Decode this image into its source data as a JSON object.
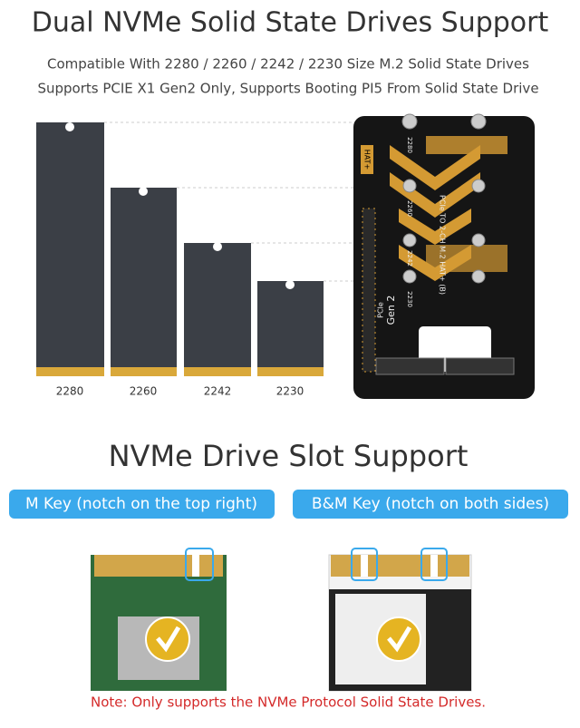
{
  "header": {
    "title": "Dual NVMe Solid State Drives Support",
    "lines": [
      "Compatible With 2280 / 2260 / 2242 / 2230 Size M.2 Solid State Drives",
      "Supports PCIE X1 Gen2 Only, Supports Booting PI5 From Solid State Drive"
    ]
  },
  "drives": [
    {
      "label": "2280"
    },
    {
      "label": "2260"
    },
    {
      "label": "2242"
    },
    {
      "label": "2230"
    }
  ],
  "board": {
    "hat": "HAT+",
    "name": "PCIe TO 2-CH M.2 HAT+ (B)",
    "gen_top": "PCIe",
    "gen": "Gen 2",
    "sizes": [
      "2280",
      "2260",
      "2242",
      "2230"
    ]
  },
  "slots": {
    "title": "NVMe Drive Slot Support",
    "m_key": "M Key (notch on the top right)",
    "bm_key": "B&M Key (notch on both sides)"
  },
  "note": "Note: Only supports the NVMe Protocol Solid State Drives."
}
